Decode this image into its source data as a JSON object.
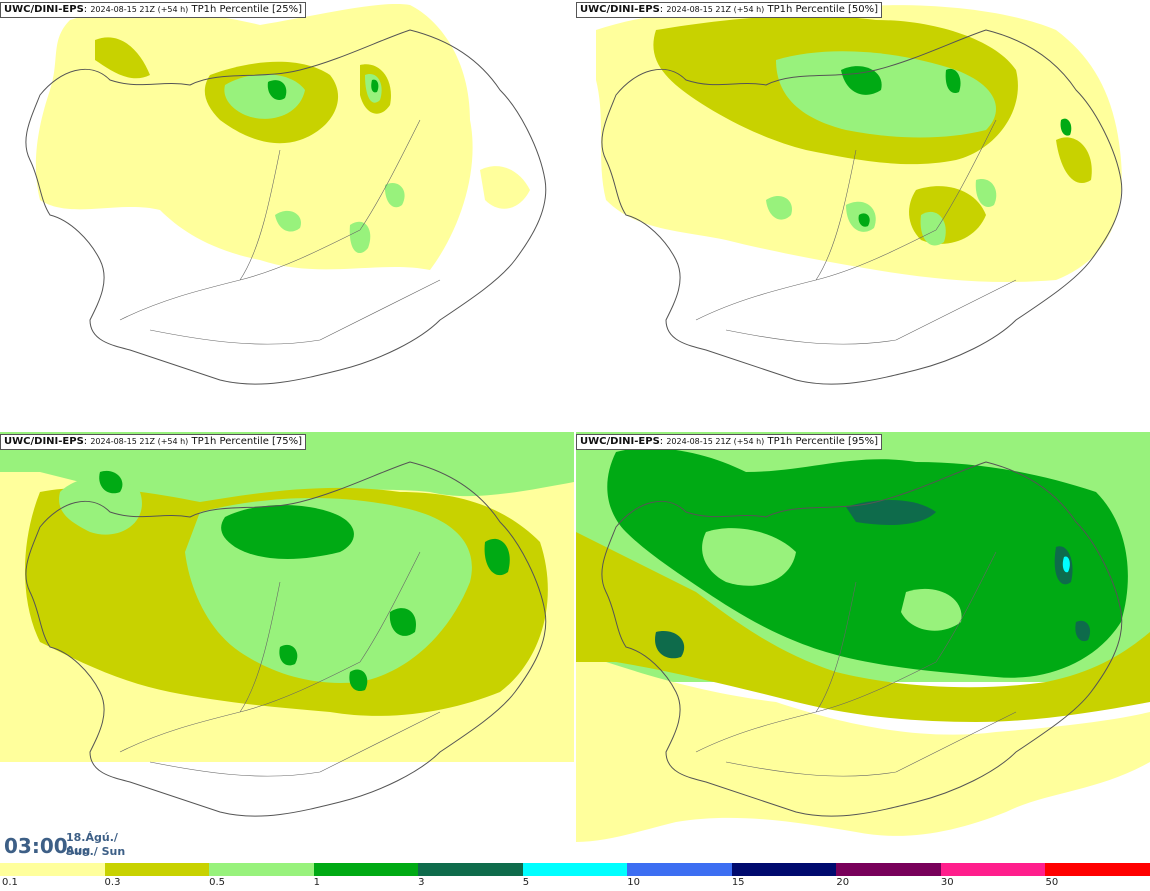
{
  "panels": [
    {
      "model": "UWC/DINI-EPS",
      "stamp": "2024-08-15 21Z (+54 h)",
      "title": "TP1h Percentile [25%]"
    },
    {
      "model": "UWC/DINI-EPS",
      "stamp": "2024-08-15 21Z (+54 h)",
      "title": "TP1h Percentile [50%]"
    },
    {
      "model": "UWC/DINI-EPS",
      "stamp": "2024-08-15 21Z (+54 h)",
      "title": "TP1h Percentile [75%]"
    },
    {
      "model": "UWC/DINI-EPS",
      "stamp": "2024-08-15 21Z (+54 h)",
      "title": "TP1h Percentile [95%]"
    }
  ],
  "valid_time": {
    "time": "03:00",
    "date": "18.Ágú./ Aug",
    "day": "Sun./ Sun"
  },
  "legend": {
    "labels": [
      "0.1",
      "0.3",
      "0.5",
      "1",
      "3",
      "5",
      "10",
      "15",
      "20",
      "30",
      "50"
    ],
    "colors": [
      "#ffff9c",
      "#c8d200",
      "#98f27c",
      "#00aa14",
      "#0e6b4b",
      "#00ffff",
      "#3c6ef2",
      "#000a6e",
      "#78005a",
      "#ff1e8c",
      "#ff0000"
    ]
  },
  "map_colors": {
    "land": "#ffffff",
    "coast": "#555555",
    "light": "#ffff9c",
    "olive": "#c8d200",
    "lightgreen": "#98f27c",
    "green": "#00aa14",
    "darkgreen": "#0e6b4b",
    "cyan": "#00ffff"
  }
}
